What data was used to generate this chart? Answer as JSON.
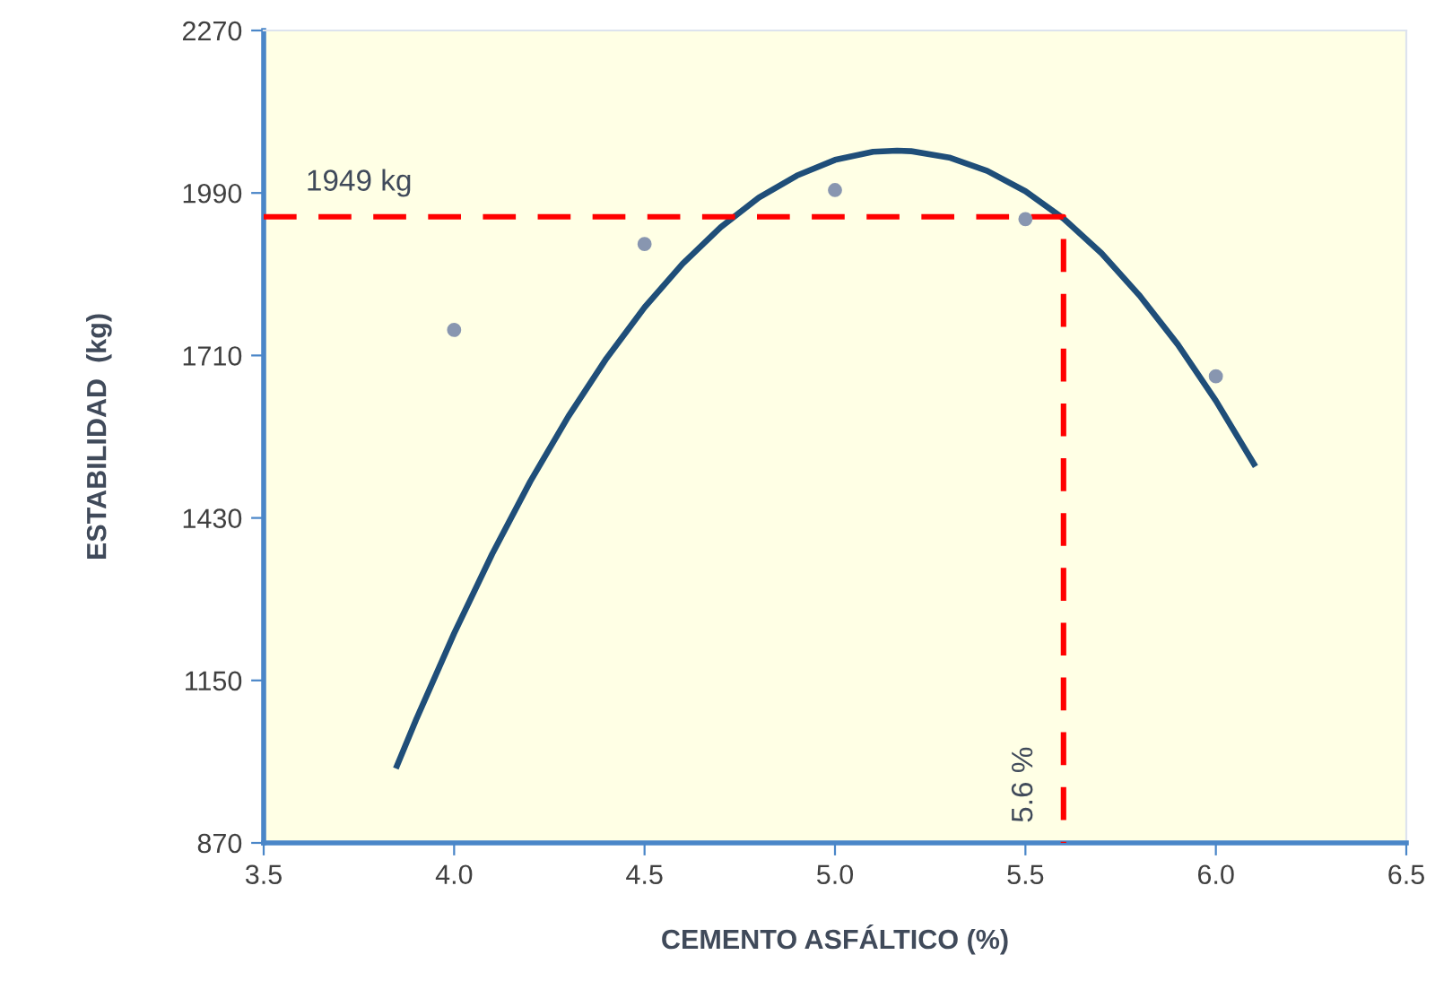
{
  "chart_data": {
    "type": "scatter",
    "xlabel": "CEMENTO ASFÁLTICO (%)",
    "ylabel": "ESTABILIDAD  (kg)",
    "series": [
      {
        "color": "#8896b0",
        "marker": "circle",
        "x": [
          4.0,
          4.5,
          5.0,
          5.5,
          6.0
        ],
        "values": [
          1754,
          1902,
          1995,
          1945,
          1674
        ]
      },
      {
        "type": "line",
        "color": "#1f4e79",
        "marker": "none",
        "line_style": "solid",
        "x": [
          3.85,
          3.9,
          4.0,
          4.1,
          4.2,
          4.3,
          4.4,
          4.5,
          4.6,
          4.7,
          4.8,
          4.9,
          5.0,
          5.1,
          5.163,
          5.2,
          5.3,
          5.4,
          5.5,
          5.6,
          5.7,
          5.8,
          5.9,
          6.0,
          6.1
        ],
        "values": [
          1003,
          1082,
          1231,
          1368,
          1493,
          1605,
          1705,
          1793,
          1868,
          1931,
          1982,
          2020,
          2047,
          2061,
          2063,
          2062,
          2051,
          2028,
          1993,
          1946,
          1886,
          1813,
          1729,
          1632,
          1523
        ]
      },
      {
        "type": "line",
        "color": "#ff0000",
        "marker": "none",
        "line_style": "dashed",
        "x": [
          3.5,
          5.6,
          5.6
        ],
        "values": [
          1949,
          1949,
          870
        ]
      }
    ],
    "annotations": [
      {
        "text": "1949 kg",
        "x": 3.75,
        "y": 1949
      },
      {
        "text": "5.6 %",
        "x": 5.6,
        "y": 870
      }
    ],
    "xlim": [
      3.5,
      6.5
    ],
    "xticks": [
      {
        "value": 3.5,
        "label": "3.5"
      },
      {
        "value": 4.0,
        "label": "4.0"
      },
      {
        "value": 4.5,
        "label": "4.5"
      },
      {
        "value": 5.0,
        "label": "5.0"
      },
      {
        "value": 5.5,
        "label": "5.5"
      },
      {
        "value": 6.0,
        "label": "6.0"
      },
      {
        "value": 6.5,
        "label": "6.5"
      }
    ],
    "ylim": [
      870,
      2270
    ],
    "yticks": [
      870,
      1150,
      1430,
      1710,
      1990,
      2270
    ],
    "grid": false,
    "legend": false
  }
}
